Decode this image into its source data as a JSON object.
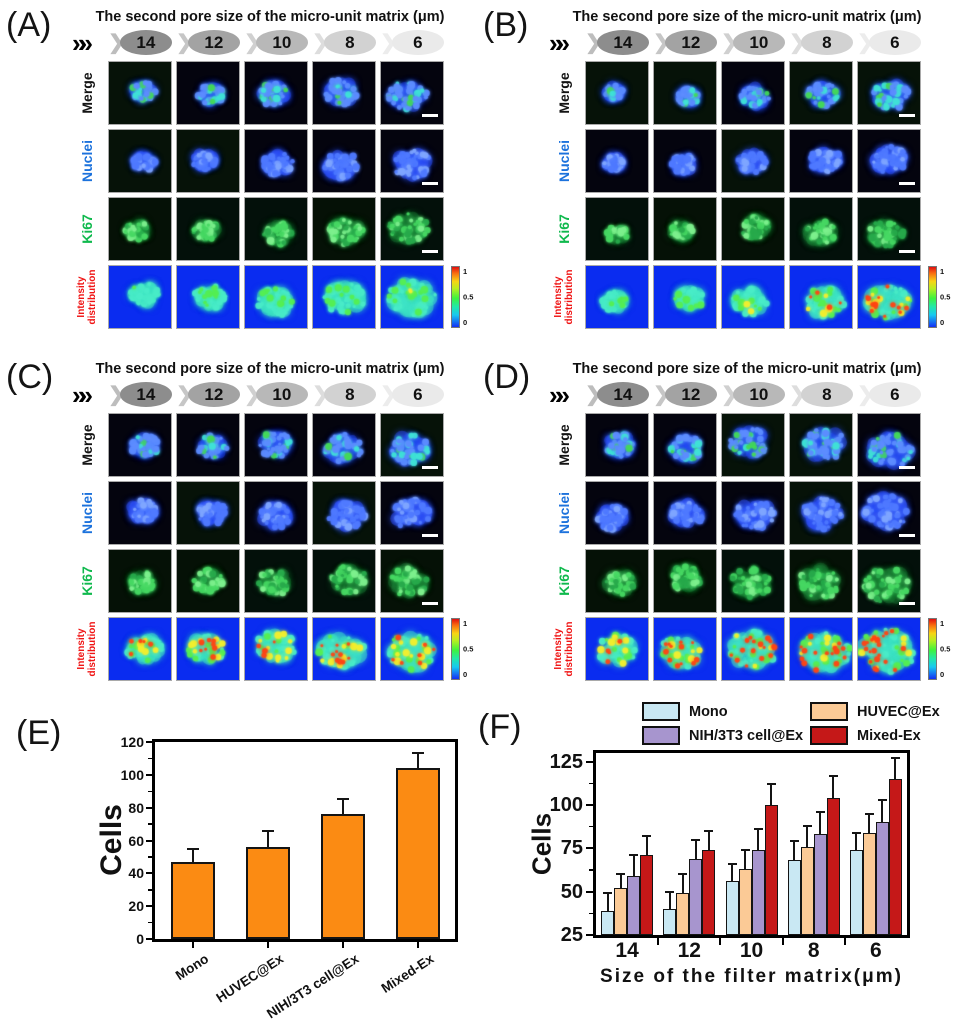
{
  "micro_panels": [
    {
      "label": "(A)",
      "title": "The second pore size of the micro-unit matrix (μm)",
      "fast_forward_icon": "»",
      "pore_sizes": [
        "14",
        "12",
        "10",
        "8",
        "6"
      ],
      "rows": [
        {
          "label": "Merge",
          "color": "#141414"
        },
        {
          "label": "Nuclei",
          "color": "#1c72dc"
        },
        {
          "label": "Ki67",
          "color": "#0fb94d"
        },
        {
          "label": "Intensity distribution",
          "line1": "Intensity",
          "line2": "distribution",
          "color": "#f01515"
        }
      ],
      "colorbar_ticks": [
        "1",
        "0.5",
        "0"
      ]
    },
    {
      "label": "(B)",
      "title": "The second pore size of the micro-unit matrix (μm)",
      "fast_forward_icon": "»",
      "pore_sizes": [
        "14",
        "12",
        "10",
        "8",
        "6"
      ],
      "rows": [
        {
          "label": "Merge",
          "color": "#141414"
        },
        {
          "label": "Nuclei",
          "color": "#1c72dc"
        },
        {
          "label": "Ki67",
          "color": "#0fb94d"
        },
        {
          "label": "Intensity distribution",
          "line1": "Intensity",
          "line2": "distribution",
          "color": "#f01515"
        }
      ],
      "colorbar_ticks": [
        "1",
        "0.5",
        "0"
      ]
    },
    {
      "label": "(C)",
      "title": "The second pore size of the micro-unit matrix (μm)",
      "fast_forward_icon": "»",
      "pore_sizes": [
        "14",
        "12",
        "10",
        "8",
        "6"
      ],
      "rows": [
        {
          "label": "Merge",
          "color": "#141414"
        },
        {
          "label": "Nuclei",
          "color": "#1c72dc"
        },
        {
          "label": "Ki67",
          "color": "#0fb94d"
        },
        {
          "label": "Intensity distribution",
          "line1": "Intensity",
          "line2": "distribution",
          "color": "#f01515"
        }
      ],
      "colorbar_ticks": [
        "1",
        "0.5",
        "0"
      ]
    },
    {
      "label": "(D)",
      "title": "The second pore size of the micro-unit matrix (μm)",
      "fast_forward_icon": "»",
      "pore_sizes": [
        "14",
        "12",
        "10",
        "8",
        "6"
      ],
      "rows": [
        {
          "label": "Merge",
          "color": "#141414"
        },
        {
          "label": "Nuclei",
          "color": "#1c72dc"
        },
        {
          "label": "Ki67",
          "color": "#0fb94d"
        },
        {
          "label": "Intensity distribution",
          "line1": "Intensity",
          "line2": "distribution",
          "color": "#f01515"
        }
      ],
      "colorbar_ticks": [
        "1",
        "0.5",
        "0"
      ]
    }
  ],
  "pore_ellipse_colors": [
    "#8d8d8d",
    "#a3a3a3",
    "#b8b8b8",
    "#d2d2d2",
    "#eaeaea"
  ],
  "pore_chevron_colors": [
    "#bdbdbd",
    "#c6c6c6",
    "#d0d0d0",
    "#dddddd",
    "#ececec"
  ],
  "scale_bar_color": "#ffffff",
  "chart_data": [
    {
      "id": "E",
      "type": "bar",
      "panel_label": "(E)",
      "ylabel": "Cells",
      "ylim": [
        0,
        120
      ],
      "yticks": [
        0,
        20,
        40,
        60,
        80,
        100,
        120
      ],
      "yminor": [
        10,
        30,
        50,
        70,
        90,
        110
      ],
      "categories": [
        "Mono",
        "HUVEC@Ex",
        "NIH/3T3 cell@Ex",
        "Mixed-Ex"
      ],
      "values": [
        47,
        56,
        76,
        104
      ],
      "errors": [
        8,
        10,
        9,
        9
      ],
      "bar_color": "#fb8b13",
      "bar_border": "#141414",
      "legend_position": "none",
      "grid": false
    },
    {
      "id": "F",
      "type": "grouped-bar",
      "panel_label": "(F)",
      "ylabel": "Cells",
      "xlabel": "Size of the filter matrix(μm)",
      "ylim": [
        25,
        130
      ],
      "yticks": [
        25,
        50,
        75,
        100,
        125
      ],
      "yminor": [
        37.5,
        62.5,
        87.5,
        112.5
      ],
      "categories": [
        "14",
        "12",
        "10",
        "8",
        "6"
      ],
      "series": [
        {
          "name": "Mono",
          "color": "#c9e8f3",
          "values": [
            39,
            40,
            56,
            68,
            74
          ],
          "errors": [
            10,
            10,
            10,
            11,
            10
          ]
        },
        {
          "name": "HUVEC@Ex",
          "color": "#fbca96",
          "values": [
            52,
            49,
            63,
            76,
            84
          ],
          "errors": [
            8,
            11,
            11,
            12,
            11
          ]
        },
        {
          "name": "NIH/3T3 cell@Ex",
          "color": "#a795ce",
          "values": [
            59,
            69,
            74,
            83,
            90
          ],
          "errors": [
            12,
            11,
            12,
            13,
            13
          ]
        },
        {
          "name": "Mixed-Ex",
          "color": "#c51818",
          "values": [
            71,
            74,
            100,
            104,
            115
          ],
          "errors": [
            11,
            11,
            12,
            13,
            12
          ]
        }
      ],
      "legend_position": "top",
      "grid": false
    }
  ]
}
